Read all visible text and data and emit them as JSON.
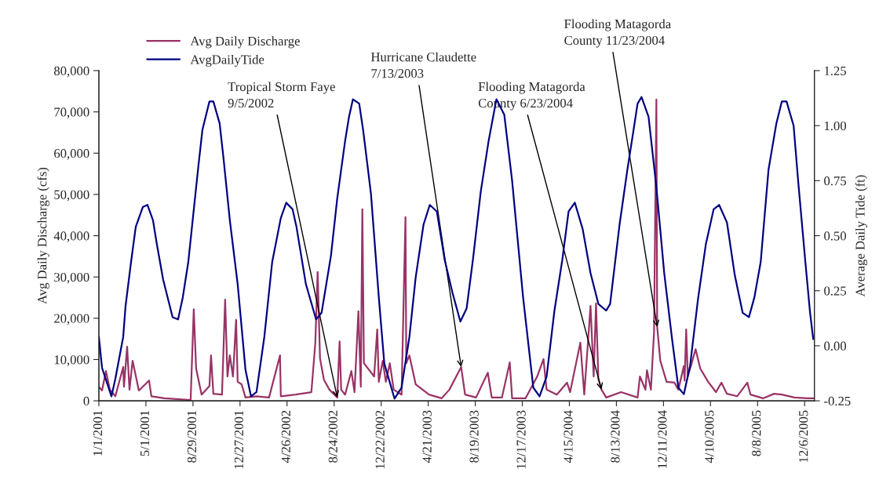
{
  "chart_data": {
    "type": "line",
    "ylabel": "Avg Daily Discharge (cfs)",
    "y2label": "Average Daily Tide (ft)",
    "xlim": [
      "2001-01-01",
      "2005-12-31"
    ],
    "xticks": [
      {
        "value": "2001-01-01",
        "label": "1/1/2001"
      },
      {
        "value": "2001-05-01",
        "label": "5/1/2001"
      },
      {
        "value": "2001-08-29",
        "label": "8/29/2001"
      },
      {
        "value": "2001-12-27",
        "label": "12/27/2001"
      },
      {
        "value": "2002-04-26",
        "label": "4/26/2002"
      },
      {
        "value": "2002-08-24",
        "label": "8/24/2002"
      },
      {
        "value": "2002-12-22",
        "label": "12/22/2002"
      },
      {
        "value": "2003-04-21",
        "label": "4/21/2003"
      },
      {
        "value": "2003-08-19",
        "label": "8/19/2003"
      },
      {
        "value": "2003-12-17",
        "label": "12/17/2003"
      },
      {
        "value": "2004-04-15",
        "label": "4/15/2004"
      },
      {
        "value": "2004-08-13",
        "label": "8/13/2004"
      },
      {
        "value": "2004-12-11",
        "label": "12/11/2004"
      },
      {
        "value": "2005-04-10",
        "label": "4/10/2005"
      },
      {
        "value": "2005-08-08",
        "label": "8/8/2005"
      },
      {
        "value": "2005-12-06",
        "label": "12/6/2005"
      }
    ],
    "ylim": [
      0,
      80000
    ],
    "yticks": [
      0,
      {
        "value": 10000,
        "label": "10,000"
      },
      {
        "value": 20000,
        "label": "20,000"
      },
      {
        "value": 30000,
        "label": "30,000"
      },
      {
        "value": 40000,
        "label": "40,000"
      },
      {
        "value": 50000,
        "label": "50,000"
      },
      {
        "value": 60000,
        "label": "60,000"
      },
      {
        "value": 70000,
        "label": "70,000"
      },
      {
        "value": 80000,
        "label": "80,000"
      }
    ],
    "y2lim": [
      -0.25,
      1.25
    ],
    "y2ticks": [
      -0.25,
      {
        "value": 0,
        "label": "0.00"
      },
      0.25,
      {
        "value": 0.5,
        "label": "0.50"
      },
      0.75,
      {
        "value": 1,
        "label": "1.00"
      },
      1.25
    ],
    "grid": false,
    "legend": "top left",
    "series": [
      {
        "name": "Avg Daily Discharge",
        "color": "#993366",
        "x": [
          "2001-01-01",
          "2001-01-09",
          "2001-01-19",
          "2001-01-29",
          "2001-02-12",
          "2001-03-04",
          "2001-03-06",
          "2001-03-14",
          "2001-03-20",
          "2001-03-28",
          "2001-04-13",
          "2001-05-09",
          "2001-05-15",
          "2001-06-18",
          "2001-08-23",
          "2001-08-31",
          "2001-09-06",
          "2001-09-20",
          "2001-10-10",
          "2001-10-14",
          "2001-10-20",
          "2001-11-11",
          "2001-11-19",
          "2001-11-25",
          "2001-12-01",
          "2001-12-09",
          "2001-12-17",
          "2001-12-21",
          "2001-12-31",
          "2002-01-10",
          "2002-02-07",
          "2002-03-11",
          "2002-04-08",
          "2002-04-10",
          "2002-05-18",
          "2002-06-27",
          "2002-07-07",
          "2002-07-13",
          "2002-07-19",
          "2002-07-29",
          "2002-08-12",
          "2002-09-01",
          "2002-09-07",
          "2002-09-11",
          "2002-09-21",
          "2002-10-07",
          "2002-10-15",
          "2002-10-25",
          "2002-10-31",
          "2002-11-04",
          "2002-11-08",
          "2002-12-04",
          "2002-12-12",
          "2002-12-16",
          "2002-12-26",
          "2003-01-03",
          "2003-01-13",
          "2003-01-23",
          "2003-02-12",
          "2003-02-22",
          "2003-02-24",
          "2003-03-04",
          "2003-03-20",
          "2003-04-23",
          "2003-05-25",
          "2003-06-14",
          "2003-07-14",
          "2003-07-24",
          "2003-08-21",
          "2003-09-20",
          "2003-09-30",
          "2003-10-26",
          "2003-11-15",
          "2003-11-21",
          "2003-12-25",
          "2004-01-24",
          "2004-02-09",
          "2004-02-17",
          "2004-03-14",
          "2004-04-09",
          "2004-04-17",
          "2004-05-13",
          "2004-05-23",
          "2004-06-08",
          "2004-06-16",
          "2004-06-22",
          "2004-06-28",
          "2004-07-06",
          "2004-07-18",
          "2004-08-25",
          "2004-10-06",
          "2004-10-12",
          "2004-10-26",
          "2004-10-30",
          "2004-11-09",
          "2004-11-17",
          "2004-11-23",
          "2004-11-25",
          "2004-12-03",
          "2004-12-19",
          "2005-01-08",
          "2005-01-18",
          "2005-02-01",
          "2005-02-03",
          "2005-02-07",
          "2005-02-11",
          "2005-02-21",
          "2005-03-03",
          "2005-03-15",
          "2005-04-04",
          "2005-04-24",
          "2005-05-08",
          "2005-05-22",
          "2005-06-17",
          "2005-07-13",
          "2005-07-21",
          "2005-08-22",
          "2005-09-19",
          "2005-10-09",
          "2005-11-10",
          "2005-12-14",
          "2005-12-28"
        ],
        "values": [
          3400,
          2500,
          7200,
          2700,
          1100,
          8200,
          3400,
          13100,
          2700,
          9700,
          2500,
          4900,
          1100,
          600,
          200,
          22200,
          7800,
          1500,
          3600,
          11000,
          1700,
          1500,
          24500,
          5900,
          11000,
          5900,
          19600,
          4600,
          4000,
          800,
          1100,
          800,
          11000,
          1100,
          1500,
          2100,
          14000,
          31200,
          10300,
          5100,
          2700,
          800,
          14400,
          2700,
          1500,
          7200,
          2100,
          21700,
          3400,
          46400,
          9100,
          5900,
          17300,
          4600,
          9700,
          4600,
          9100,
          2700,
          1500,
          44500,
          9100,
          11000,
          4000,
          1500,
          600,
          2700,
          8200,
          1500,
          800,
          6800,
          800,
          800,
          9300,
          600,
          600,
          5900,
          10100,
          2700,
          1500,
          4400,
          2100,
          14100,
          1500,
          23000,
          5900,
          23600,
          5300,
          2700,
          800,
          2100,
          800,
          5900,
          2700,
          7400,
          2700,
          16700,
          73000,
          17900,
          9700,
          4600,
          4400,
          2700,
          8400,
          4900,
          17300,
          5900,
          9100,
          12500,
          7800,
          4600,
          2100,
          4400,
          1700,
          1100,
          4400,
          1500,
          600,
          1700,
          1500,
          800,
          600,
          600
        ]
      },
      {
        "name": "AvgDailyTide",
        "color": "#000080",
        "axis": "y2",
        "x": [
          "2001-01-01",
          "2001-01-09",
          "2001-02-02",
          "2001-02-12",
          "2001-03-04",
          "2001-03-10",
          "2001-03-24",
          "2001-04-05",
          "2001-04-23",
          "2001-05-05",
          "2001-05-19",
          "2001-05-29",
          "2001-06-14",
          "2001-07-08",
          "2001-07-22",
          "2001-08-03",
          "2001-08-17",
          "2001-08-27",
          "2001-09-12",
          "2001-09-22",
          "2001-10-10",
          "2001-10-20",
          "2001-11-05",
          "2001-11-15",
          "2001-12-01",
          "2001-12-21",
          "2002-01-10",
          "2002-01-24",
          "2002-02-07",
          "2002-02-27",
          "2002-03-19",
          "2002-04-10",
          "2002-04-24",
          "2002-05-10",
          "2002-05-20",
          "2002-06-13",
          "2002-07-09",
          "2002-07-23",
          "2002-08-16",
          "2002-09-01",
          "2002-09-21",
          "2002-10-01",
          "2002-10-11",
          "2002-10-27",
          "2002-11-06",
          "2002-11-26",
          "2002-12-16",
          "2002-12-30",
          "2003-01-25",
          "2003-02-12",
          "2003-03-04",
          "2003-03-20",
          "2003-04-09",
          "2003-04-25",
          "2003-05-13",
          "2003-06-02",
          "2003-06-22",
          "2003-07-12",
          "2003-07-28",
          "2003-08-13",
          "2003-09-02",
          "2003-09-22",
          "2003-10-12",
          "2003-11-01",
          "2003-11-21",
          "2003-12-19",
          "2004-01-14",
          "2004-01-30",
          "2004-02-17",
          "2004-03-08",
          "2004-03-28",
          "2004-04-13",
          "2004-04-29",
          "2004-05-19",
          "2004-06-08",
          "2004-06-28",
          "2004-07-18",
          "2004-07-28",
          "2004-08-21",
          "2004-09-10",
          "2004-09-24",
          "2004-10-06",
          "2004-10-16",
          "2004-11-03",
          "2004-11-23",
          "2004-12-13",
          "2005-01-02",
          "2005-01-18",
          "2005-02-01",
          "2005-02-17",
          "2005-03-09",
          "2005-03-29",
          "2005-04-18",
          "2005-05-02",
          "2005-05-22",
          "2005-06-11",
          "2005-07-01",
          "2005-07-17",
          "2005-07-31",
          "2005-08-16",
          "2005-09-05",
          "2005-09-25",
          "2005-10-09",
          "2005-10-21",
          "2005-11-08",
          "2005-11-20",
          "2005-12-08",
          "2005-12-20",
          "2005-12-28"
        ],
        "values": [
          0.04,
          -0.1,
          -0.23,
          -0.15,
          0.04,
          0.18,
          0.38,
          0.54,
          0.63,
          0.64,
          0.57,
          0.46,
          0.3,
          0.13,
          0.12,
          0.22,
          0.38,
          0.55,
          0.82,
          0.98,
          1.11,
          1.11,
          1.01,
          0.85,
          0.57,
          0.28,
          -0.11,
          -0.23,
          -0.21,
          0.04,
          0.38,
          0.58,
          0.65,
          0.62,
          0.54,
          0.28,
          0.12,
          0.15,
          0.41,
          0.67,
          0.93,
          1.04,
          1.12,
          1.1,
          0.98,
          0.69,
          0.22,
          -0.08,
          -0.24,
          -0.19,
          0.04,
          0.31,
          0.55,
          0.64,
          0.61,
          0.39,
          0.24,
          0.11,
          0.17,
          0.39,
          0.7,
          0.93,
          1.12,
          1.05,
          0.75,
          0.22,
          -0.19,
          -0.23,
          -0.14,
          0.16,
          0.39,
          0.61,
          0.65,
          0.53,
          0.33,
          0.19,
          0.16,
          0.19,
          0.55,
          0.8,
          0.96,
          1.1,
          1.13,
          1.04,
          0.72,
          0.33,
          0.03,
          -0.19,
          -0.22,
          -0.09,
          0.21,
          0.46,
          0.62,
          0.64,
          0.56,
          0.32,
          0.15,
          0.13,
          0.22,
          0.38,
          0.8,
          1.01,
          1.11,
          1.11,
          1.0,
          0.74,
          0.38,
          0.15,
          0.03
        ]
      }
    ],
    "annotations": [
      {
        "text": "Tropical Storm Faye\n9/5/2002",
        "x": "2002-09-01",
        "y": 800
      },
      {
        "text": "Hurricane Claudette\n7/13/2003",
        "x": "2003-07-14",
        "y": 8200
      },
      {
        "text": "Flooding Matagorda\nCounty 6/23/2004",
        "x": "2004-07-06",
        "y": 2700
      },
      {
        "text": "Flooding Matagorda\nCounty 11/23/2004",
        "x": "2004-11-25",
        "y": 17900
      }
    ]
  }
}
